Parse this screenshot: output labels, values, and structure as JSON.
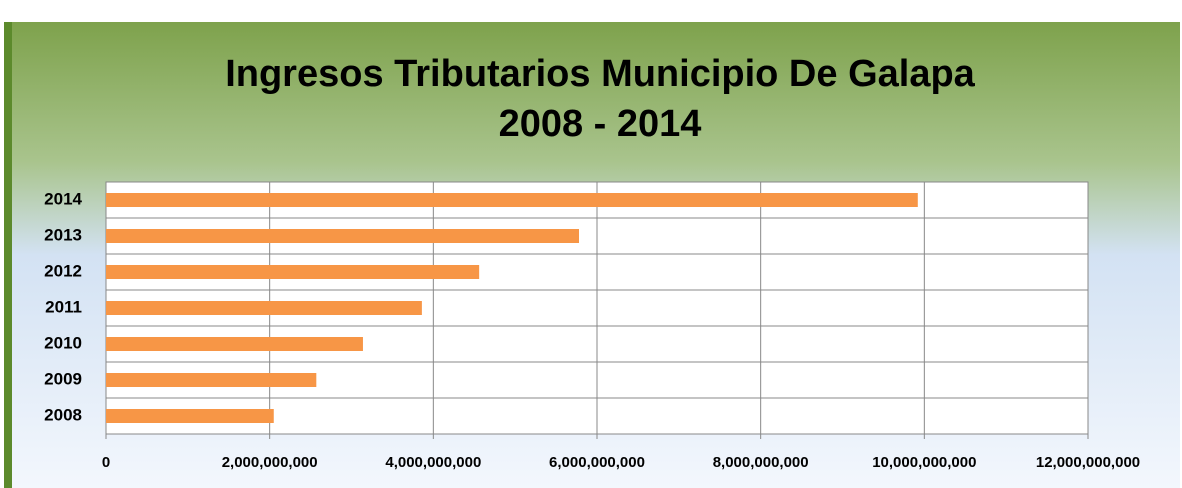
{
  "chart_data": {
    "type": "barh",
    "title": "Ingresos Tributarios Municipio De Galapa",
    "subtitle": "2008 - 2014",
    "categories": [
      "2008",
      "2009",
      "2010",
      "2011",
      "2012",
      "2013",
      "2014"
    ],
    "values": [
      2050000000,
      2570000000,
      3140000000,
      3860000000,
      4560000000,
      5780000000,
      9920000000
    ],
    "color": "#f79646",
    "xlim": [
      0,
      12000000000
    ],
    "xticks": [
      0,
      {
        "value": 2000000000,
        "label": "2,000,000,000"
      },
      {
        "value": 4000000000,
        "label": "4,000,000,000"
      },
      {
        "value": 6000000000,
        "label": "6,000,000,000"
      },
      {
        "value": 8000000000,
        "label": "8,000,000,000"
      },
      {
        "value": 10000000000,
        "label": "10,000,000,000"
      },
      {
        "value": 12000000000,
        "label": "12,000,000,000"
      }
    ],
    "grid": true
  }
}
